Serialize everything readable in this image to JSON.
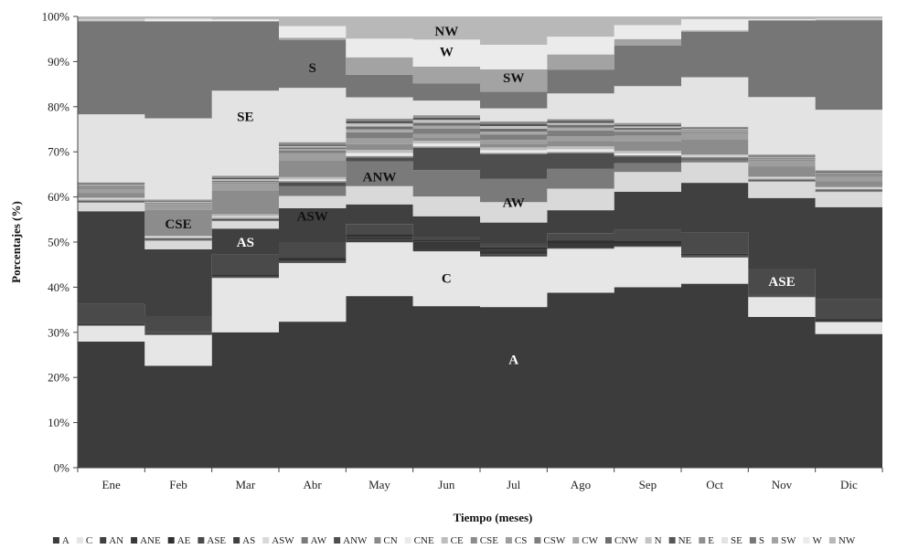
{
  "chart_data": {
    "type": "area",
    "stacked": true,
    "percent": true,
    "ylabel": "Porcentajes (%)",
    "xlabel": "Tiempo (meses)",
    "categories": [
      "Ene",
      "Feb",
      "Mar",
      "Abr",
      "May",
      "Jun",
      "Jul",
      "Ago",
      "Sep",
      "Oct",
      "Nov",
      "Dic"
    ],
    "y_ticks": [
      "0%",
      "10%",
      "20%",
      "30%",
      "40%",
      "50%",
      "60%",
      "70%",
      "80%",
      "90%",
      "100%"
    ],
    "ylim": [
      0,
      100
    ],
    "grid": false,
    "legend_position": "bottom",
    "series": [
      {
        "name": "A",
        "color": "#3c3c3c",
        "values": [
          28,
          22.7,
          27.2,
          30.1,
          34.8,
          34.2,
          34.6,
          37.3,
          37.6,
          39.7,
          33.3,
          29.1
        ]
      },
      {
        "name": "C",
        "color": "#e6e6e6",
        "values": [
          3.5,
          6.9,
          10.9,
          12.1,
          10.9,
          11.6,
          10.9,
          9.4,
          8.4,
          5.7,
          4.4,
          2.6
        ]
      },
      {
        "name": "AN",
        "color": "#404040",
        "values": [
          0.2,
          0.2,
          0.2,
          0.2,
          0.5,
          0.5,
          0.5,
          0.2,
          0.2,
          0.2,
          0.2,
          0.2
        ]
      },
      {
        "name": "ANE",
        "color": "#383838",
        "values": [
          0.2,
          0.2,
          0.2,
          0.3,
          0.6,
          1.5,
          1,
          1,
          0.6,
          0.3,
          0.2,
          0.2
        ]
      },
      {
        "name": "AE",
        "color": "#303030",
        "values": [
          0.2,
          0.2,
          0.2,
          0.5,
          0.6,
          0.5,
          0.5,
          0.5,
          0.5,
          0.3,
          0.2,
          0.2
        ]
      },
      {
        "name": "ASE",
        "color": "#4a4a4a",
        "values": [
          4.2,
          3.6,
          4.1,
          3.3,
          2,
          0.6,
          0.8,
          1.6,
          2.2,
          4.6,
          5.7,
          4.3
        ]
      },
      {
        "name": "AS",
        "color": "#404040",
        "values": [
          20.6,
          14.9,
          5.2,
          7,
          4,
          4.3,
          4.5,
          4.9,
          8,
          10.7,
          15.6,
          20.1
        ]
      },
      {
        "name": "ASW",
        "color": "#d9d9d9",
        "values": [
          1.9,
          1.9,
          1.5,
          2.5,
          3.7,
          4.2,
          4.4,
          4.6,
          4.1,
          4.4,
          3.6,
          3.3
        ]
      },
      {
        "name": "AW",
        "color": "#7a7a7a",
        "values": [
          0.2,
          0.2,
          0.2,
          2,
          5,
          5.6,
          5,
          4.2,
          1.8,
          0.6,
          0.2,
          0.2
        ]
      },
      {
        "name": "ANW",
        "color": "#4e4e4e",
        "values": [
          0.2,
          0.2,
          0.2,
          0.8,
          0.8,
          4.7,
          5.3,
          3.3,
          1.4,
          0.3,
          0.2,
          0.2
        ]
      },
      {
        "name": "CN",
        "color": "#8a8a8a",
        "values": [
          0.3,
          0.3,
          0.3,
          0.3,
          0.3,
          0.3,
          0.3,
          0.3,
          0.3,
          0.3,
          0.3,
          0.3
        ]
      },
      {
        "name": "CNE",
        "color": "#eaeaea",
        "values": [
          0.2,
          0.2,
          0.2,
          0.3,
          0.6,
          0.6,
          0.6,
          0.6,
          0.4,
          0.2,
          0.2,
          0.2
        ]
      },
      {
        "name": "CE",
        "color": "#bdbdbd",
        "values": [
          0.2,
          0.2,
          0.5,
          0.5,
          0.6,
          0.6,
          0.6,
          0.6,
          0.5,
          0.3,
          0.2,
          0.2
        ]
      },
      {
        "name": "CSE",
        "color": "#8c8c8c",
        "values": [
          1,
          5.8,
          4.8,
          3.5,
          1.2,
          0.6,
          0.8,
          1.2,
          2,
          3.3,
          2.2,
          1.3
        ]
      },
      {
        "name": "CS",
        "color": "#9e9e9e",
        "values": [
          1,
          1,
          1.3,
          1.4,
          1.2,
          0.8,
          0.8,
          1,
          1.2,
          1.3,
          1.4,
          1
        ]
      },
      {
        "name": "CSW",
        "color": "#7e7e7e",
        "values": [
          0.2,
          0.2,
          0.2,
          0.6,
          1.2,
          1.2,
          1.2,
          1.2,
          0.8,
          0.3,
          0.2,
          0.2
        ]
      },
      {
        "name": "CW",
        "color": "#a8a8a8",
        "values": [
          0.2,
          0.2,
          0.2,
          0.3,
          0.6,
          0.6,
          0.6,
          0.6,
          0.4,
          0.2,
          0.2,
          0.2
        ]
      },
      {
        "name": "CNW",
        "color": "#6e6e6e",
        "values": [
          0.2,
          0.2,
          0.2,
          0.3,
          0.6,
          0.6,
          0.6,
          0.6,
          0.4,
          0.2,
          0.2,
          0.2
        ]
      },
      {
        "name": "N",
        "color": "#c4c4c4",
        "values": [
          0.3,
          0.2,
          0.3,
          0.3,
          0.6,
          0.6,
          0.6,
          0.4,
          0.3,
          0.2,
          0.2,
          0.2
        ]
      },
      {
        "name": "NE",
        "color": "#565656",
        "values": [
          0.2,
          0.2,
          0.3,
          0.3,
          0.5,
          0.5,
          0.5,
          0.4,
          0.3,
          0.2,
          0.2,
          0.2
        ]
      },
      {
        "name": "E",
        "color": "#909090",
        "values": [
          0.3,
          0.3,
          0.4,
          0.5,
          0.5,
          0.5,
          0.5,
          0.4,
          0.4,
          0.3,
          0.3,
          0.3
        ]
      },
      {
        "name": "SE",
        "color": "#e3e3e3",
        "values": [
          15.1,
          18.1,
          17.1,
          11.2,
          4.3,
          3.1,
          2.8,
          5.5,
          7.7,
          10.7,
          12.7,
          13.2
        ]
      },
      {
        "name": "S",
        "color": "#767676",
        "values": [
          20.6,
          21.5,
          13.8,
          9.8,
          4.6,
          3.6,
          3.6,
          5,
          8.4,
          9.8,
          16.8,
          19.4
        ]
      },
      {
        "name": "SW",
        "color": "#a3a3a3",
        "values": [
          0.2,
          0.2,
          0.2,
          0.5,
          3.5,
          3.6,
          4.8,
          3.3,
          1.4,
          0.3,
          0.2,
          0.2
        ]
      },
      {
        "name": "W",
        "color": "#ebebeb",
        "values": [
          0.2,
          0.5,
          0.3,
          2.4,
          3.8,
          5.7,
          5.3,
          3.8,
          2.9,
          2.4,
          0.2,
          0.2
        ]
      },
      {
        "name": "NW",
        "color": "#b8b8b8",
        "values": [
          0.7,
          0.5,
          0.6,
          2,
          4.5,
          4.9,
          6.1,
          4.3,
          1.8,
          0.6,
          0.6,
          0.5
        ]
      }
    ],
    "annotations": [
      {
        "text": "A",
        "month": "Jul",
        "y": 24,
        "color": "#ffffff"
      },
      {
        "text": "C",
        "month": "Jun",
        "y": 42,
        "color": "#111111"
      },
      {
        "text": "AS",
        "month": "Mar",
        "y": 50,
        "color": "#ffffff"
      },
      {
        "text": "CSE",
        "month": "Feb",
        "y": 54,
        "color": "#111111"
      },
      {
        "text": "ASW",
        "month": "Abr",
        "y": 55.8,
        "color": "#111111"
      },
      {
        "text": "AW",
        "month": "Jul",
        "y": 58.8,
        "color": "#111111"
      },
      {
        "text": "ANW",
        "month": "May",
        "y": 64.5,
        "color": "#111111"
      },
      {
        "text": "SE",
        "month": "Mar",
        "y": 77.8,
        "color": "#111111"
      },
      {
        "text": "S",
        "month": "Abr",
        "y": 88.7,
        "color": "#111111"
      },
      {
        "text": "SW",
        "month": "Jul",
        "y": 86.4,
        "color": "#111111"
      },
      {
        "text": "W",
        "month": "Jun",
        "y": 92.2,
        "color": "#111111"
      },
      {
        "text": "NW",
        "month": "Jun",
        "y": 96.8,
        "color": "#111111"
      },
      {
        "text": "ASE",
        "month": "Nov",
        "y": 41.3,
        "color": "#ffffff"
      }
    ]
  }
}
